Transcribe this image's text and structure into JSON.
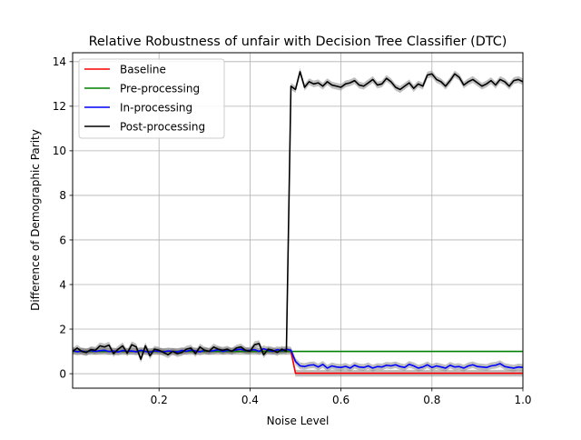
{
  "chart_data": {
    "type": "line",
    "title": "Relative Robustness of unfair with Decision Tree Classifier (DTC)",
    "xlabel": "Noise Level",
    "ylabel": "Difference of Demographic Parity",
    "xlim": [
      0.01,
      1.0
    ],
    "ylim": [
      -0.65,
      14.4
    ],
    "xticks": [
      0.2,
      0.4,
      0.6,
      0.8,
      1.0
    ],
    "xtick_labels": [
      "0.2",
      "0.4",
      "0.6",
      "0.8",
      "1.0"
    ],
    "yticks": [
      0,
      2,
      4,
      6,
      8,
      10,
      12,
      14
    ],
    "ytick_labels": [
      "0",
      "2",
      "4",
      "6",
      "8",
      "10",
      "12",
      "14"
    ],
    "grid": true,
    "legend_position": "top-left",
    "x": [
      0.01,
      0.02,
      0.03,
      0.04,
      0.05,
      0.06,
      0.07,
      0.08,
      0.09,
      0.1,
      0.11,
      0.12,
      0.13,
      0.14,
      0.15,
      0.16,
      0.17,
      0.18,
      0.19,
      0.2,
      0.21,
      0.22,
      0.23,
      0.24,
      0.25,
      0.26,
      0.27,
      0.28,
      0.29,
      0.3,
      0.31,
      0.32,
      0.33,
      0.34,
      0.35,
      0.36,
      0.37,
      0.38,
      0.39,
      0.4,
      0.41,
      0.42,
      0.43,
      0.44,
      0.45,
      0.46,
      0.47,
      0.48,
      0.49,
      0.5,
      0.51,
      0.52,
      0.53,
      0.54,
      0.55,
      0.56,
      0.57,
      0.58,
      0.59,
      0.6,
      0.61,
      0.62,
      0.63,
      0.64,
      0.65,
      0.66,
      0.67,
      0.68,
      0.69,
      0.7,
      0.71,
      0.72,
      0.73,
      0.74,
      0.75,
      0.76,
      0.77,
      0.78,
      0.79,
      0.8,
      0.81,
      0.82,
      0.83,
      0.84,
      0.85,
      0.86,
      0.87,
      0.88,
      0.89,
      0.9,
      0.91,
      0.92,
      0.93,
      0.94,
      0.95,
      0.96,
      0.97,
      0.98,
      0.99,
      1.0
    ],
    "series": [
      {
        "name": "Baseline",
        "color": "#ff0000",
        "values": [
          1.0,
          1.0,
          1.0,
          1.0,
          1.0,
          1.0,
          1.0,
          1.0,
          1.0,
          1.0,
          1.0,
          1.0,
          1.0,
          1.0,
          1.0,
          1.0,
          1.0,
          1.0,
          1.0,
          1.0,
          1.0,
          1.0,
          1.0,
          1.0,
          1.0,
          1.0,
          1.0,
          1.0,
          1.0,
          1.0,
          1.0,
          1.0,
          1.0,
          1.0,
          1.0,
          1.0,
          1.0,
          1.0,
          1.0,
          1.0,
          1.0,
          1.0,
          1.0,
          1.0,
          1.0,
          1.0,
          1.0,
          1.0,
          1.0,
          0.02,
          0.02,
          0.02,
          0.02,
          0.02,
          0.02,
          0.02,
          0.02,
          0.02,
          0.02,
          0.02,
          0.02,
          0.02,
          0.02,
          0.02,
          0.02,
          0.02,
          0.02,
          0.02,
          0.02,
          0.02,
          0.02,
          0.02,
          0.02,
          0.02,
          0.02,
          0.02,
          0.02,
          0.02,
          0.02,
          0.02,
          0.02,
          0.02,
          0.02,
          0.02,
          0.02,
          0.02,
          0.02,
          0.02,
          0.02,
          0.02,
          0.02,
          0.02,
          0.02,
          0.02,
          0.02,
          0.02,
          0.02,
          0.02,
          0.02,
          0.02
        ]
      },
      {
        "name": "Pre-processing",
        "color": "#008000",
        "values": [
          1.0,
          1.0,
          1.0,
          1.0,
          1.0,
          1.0,
          1.0,
          1.0,
          1.0,
          1.0,
          1.0,
          1.0,
          1.0,
          1.0,
          1.0,
          1.0,
          1.0,
          1.0,
          1.0,
          1.0,
          1.0,
          1.0,
          1.0,
          1.0,
          1.0,
          1.0,
          1.0,
          1.0,
          1.0,
          1.0,
          1.0,
          1.0,
          1.0,
          1.0,
          1.0,
          1.0,
          1.0,
          1.0,
          1.0,
          1.0,
          1.0,
          1.0,
          1.0,
          1.0,
          1.0,
          1.0,
          1.0,
          1.0,
          1.0,
          1.0,
          1.0,
          1.0,
          1.0,
          1.0,
          1.0,
          1.0,
          1.0,
          1.0,
          1.0,
          1.0,
          1.0,
          1.0,
          1.0,
          1.0,
          1.0,
          1.0,
          1.0,
          1.0,
          1.0,
          1.0,
          1.0,
          1.0,
          1.0,
          1.0,
          1.0,
          1.0,
          1.0,
          1.0,
          1.0,
          1.0,
          1.0,
          1.0,
          1.0,
          1.0,
          1.0,
          1.0,
          1.0,
          1.0,
          1.0,
          1.0,
          1.0,
          1.0,
          1.0,
          1.0,
          1.0,
          1.0,
          1.0,
          1.0,
          1.0,
          1.0
        ]
      },
      {
        "name": "In-processing",
        "color": "#0000ff",
        "values": [
          1.05,
          0.98,
          1.02,
          0.97,
          1.04,
          1.0,
          1.03,
          1.05,
          0.99,
          1.02,
          0.97,
          1.04,
          1.0,
          1.02,
          0.98,
          1.05,
          1.0,
          0.96,
          1.03,
          1.0,
          0.98,
          1.02,
          1.0,
          0.97,
          1.04,
          1.0,
          1.06,
          1.02,
          0.98,
          1.05,
          1.0,
          1.03,
          1.08,
          1.0,
          1.05,
          1.02,
          1.07,
          1.1,
          1.03,
          1.05,
          1.08,
          1.0,
          1.12,
          1.05,
          1.0,
          1.08,
          1.03,
          1.1,
          1.05,
          0.55,
          0.35,
          0.32,
          0.38,
          0.4,
          0.3,
          0.42,
          0.25,
          0.35,
          0.3,
          0.28,
          0.33,
          0.25,
          0.38,
          0.3,
          0.28,
          0.35,
          0.25,
          0.32,
          0.3,
          0.38,
          0.35,
          0.4,
          0.32,
          0.28,
          0.42,
          0.35,
          0.25,
          0.3,
          0.4,
          0.28,
          0.35,
          0.3,
          0.25,
          0.38,
          0.3,
          0.32,
          0.25,
          0.35,
          0.4,
          0.32,
          0.3,
          0.28,
          0.35,
          0.38,
          0.45,
          0.32,
          0.28,
          0.25,
          0.3,
          0.28
        ]
      },
      {
        "name": "Post-processing",
        "color": "#000000",
        "values": [
          1.0,
          1.15,
          1.0,
          0.95,
          1.08,
          1.05,
          1.25,
          1.2,
          1.28,
          0.9,
          1.1,
          1.25,
          0.92,
          1.3,
          1.2,
          0.65,
          1.25,
          0.8,
          1.1,
          1.05,
          0.95,
          0.85,
          1.0,
          0.9,
          0.95,
          1.1,
          1.15,
          0.9,
          1.2,
          1.05,
          1.0,
          1.2,
          1.1,
          1.05,
          1.1,
          1.0,
          1.15,
          1.2,
          1.05,
          1.0,
          1.3,
          1.35,
          0.85,
          1.1,
          1.05,
          0.95,
          1.1,
          1.0,
          12.9,
          12.75,
          13.55,
          12.85,
          13.1,
          13.0,
          13.05,
          12.9,
          13.1,
          12.95,
          12.9,
          12.85,
          13.0,
          13.05,
          13.15,
          12.95,
          12.9,
          13.05,
          13.2,
          12.95,
          13.0,
          13.25,
          13.1,
          12.85,
          12.75,
          12.9,
          13.05,
          12.8,
          13.0,
          12.9,
          13.4,
          13.45,
          13.2,
          13.1,
          12.9,
          13.15,
          13.45,
          13.3,
          12.95,
          13.1,
          13.2,
          13.05,
          12.9,
          13.0,
          13.15,
          12.95,
          13.2,
          13.1,
          12.9,
          13.15,
          13.2,
          13.1
        ]
      }
    ]
  }
}
